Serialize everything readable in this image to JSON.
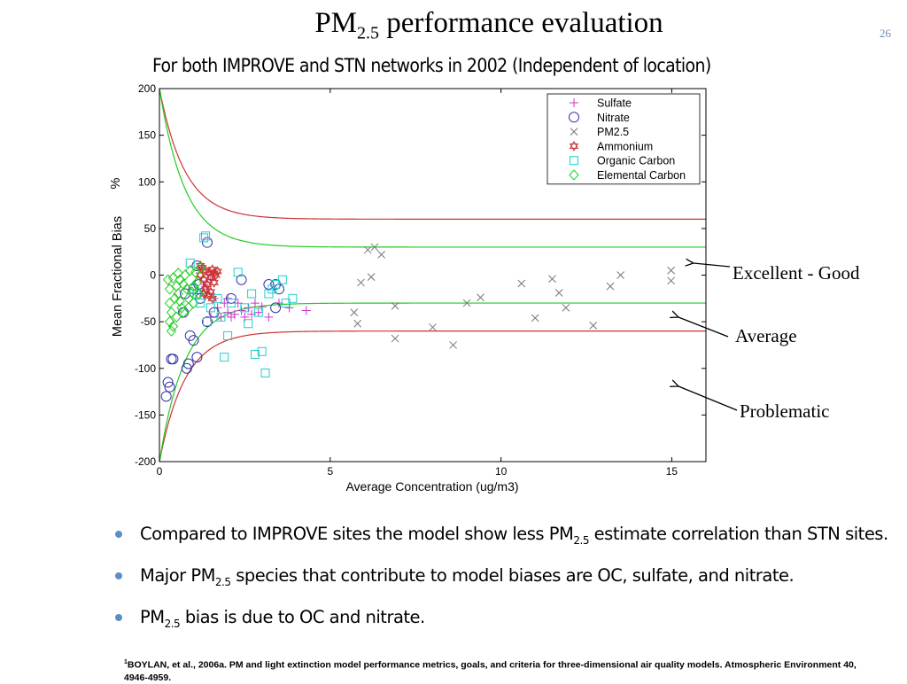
{
  "slide": {
    "title_main": "PM",
    "title_sub": "2.5",
    "title_rest": " performance evaluation",
    "page_number": "26",
    "subtitle": "For both IMPROVE and STN networks in 2002 (Independent of location)"
  },
  "annotations": [
    {
      "id": "excellent",
      "label": "Excellent - Good"
    },
    {
      "id": "average",
      "label": "Average"
    },
    {
      "id": "problematic",
      "label": "Problematic"
    }
  ],
  "bullets": [
    {
      "pre": "Compared to IMPROVE sites the model show less PM",
      "sub": "2.5",
      "post": " estimate correlation than STN sites."
    },
    {
      "pre": "Major PM",
      "sub": "2.5",
      "post": " species that contribute to model biases are OC, sulfate, and nitrate."
    },
    {
      "pre": "PM",
      "sub": "2.5",
      "post": " bias is due to OC and nitrate."
    }
  ],
  "footnote": {
    "marker": "1",
    "text": "BOYLAN, et al., 2006a. PM and light extinction model performance metrics, goals, and criteria for three-dimensional air quality models. Atmospheric Environment 40, 4946-4959."
  },
  "colors": {
    "goal_curve": "#22cc22",
    "criteria_curve": "#cc3333",
    "sulfate": "#cc33cc",
    "nitrate": "#3333aa",
    "pm25": "#777777",
    "ammonium": "#cc3333",
    "organic_carbon": "#22cccc",
    "elemental_carbon": "#22cc22",
    "arrow": "#000000"
  },
  "chart_data": {
    "type": "scatter",
    "xlabel": "Average Concentration (ug/m3)",
    "ylabel": "Mean Fractional Bias",
    "yunit": "%",
    "xlim": [
      0,
      16
    ],
    "ylim": [
      -200,
      200
    ],
    "xticks": [
      0,
      5,
      10,
      15
    ],
    "yticks": [
      200,
      150,
      100,
      50,
      0,
      -50,
      -100,
      -150,
      -200
    ],
    "grid": false,
    "legend_position": "top-right",
    "reference_curves": [
      {
        "kind": "criteria",
        "asymptote": 60,
        "start": 200,
        "decay": 0.75
      },
      {
        "kind": "goal",
        "asymptote": 30,
        "start": 200,
        "decay": 0.75
      }
    ],
    "series": [
      {
        "name": "Sulfate",
        "marker": "plus",
        "points": [
          [
            1.2,
            -20
          ],
          [
            1.3,
            -10
          ],
          [
            1.4,
            -15
          ],
          [
            1.5,
            -5
          ],
          [
            1.6,
            -25
          ],
          [
            1.7,
            -35
          ],
          [
            1.8,
            -45
          ],
          [
            1.9,
            -30
          ],
          [
            2.0,
            -40
          ],
          [
            2.1,
            -45
          ],
          [
            2.2,
            -42
          ],
          [
            2.3,
            -30
          ],
          [
            2.4,
            -38
          ],
          [
            2.5,
            -45
          ],
          [
            2.6,
            -35
          ],
          [
            2.7,
            -42
          ],
          [
            2.8,
            -30
          ],
          [
            2.9,
            -40
          ],
          [
            3.0,
            -34
          ],
          [
            3.2,
            -45
          ],
          [
            3.5,
            -30
          ],
          [
            3.8,
            -35
          ],
          [
            4.3,
            -38
          ],
          [
            1.5,
            -45
          ],
          [
            2.0,
            -25
          ]
        ]
      },
      {
        "name": "Nitrate",
        "marker": "circle",
        "points": [
          [
            0.2,
            -130
          ],
          [
            0.3,
            -120
          ],
          [
            0.25,
            -115
          ],
          [
            0.35,
            -90
          ],
          [
            0.4,
            -90
          ],
          [
            0.7,
            -40
          ],
          [
            0.75,
            -20
          ],
          [
            0.8,
            -100
          ],
          [
            0.85,
            -95
          ],
          [
            0.9,
            -65
          ],
          [
            1.0,
            -70
          ],
          [
            1.0,
            -15
          ],
          [
            1.1,
            10
          ],
          [
            1.15,
            -10
          ],
          [
            1.2,
            -25
          ],
          [
            1.4,
            35
          ],
          [
            1.4,
            -50
          ],
          [
            1.6,
            -40
          ],
          [
            2.1,
            -25
          ],
          [
            2.4,
            -5
          ],
          [
            3.2,
            -10
          ],
          [
            3.4,
            -35
          ],
          [
            3.5,
            -15
          ],
          [
            3.4,
            -10
          ],
          [
            1.1,
            -88
          ]
        ]
      },
      {
        "name": "PM2.5",
        "marker": "x",
        "points": [
          [
            5.7,
            -40
          ],
          [
            5.8,
            -52
          ],
          [
            5.9,
            -8
          ],
          [
            6.1,
            27
          ],
          [
            6.2,
            -2
          ],
          [
            6.3,
            30
          ],
          [
            6.5,
            22
          ],
          [
            6.9,
            -33
          ],
          [
            6.9,
            -68
          ],
          [
            8.0,
            -56
          ],
          [
            8.6,
            -75
          ],
          [
            9.0,
            -30
          ],
          [
            9.4,
            -24
          ],
          [
            10.6,
            -9
          ],
          [
            11.0,
            -46
          ],
          [
            11.5,
            -4
          ],
          [
            11.7,
            -19
          ],
          [
            11.9,
            -35
          ],
          [
            12.7,
            -54
          ],
          [
            13.2,
            -12
          ],
          [
            13.5,
            0
          ],
          [
            14.98,
            5
          ],
          [
            14.98,
            -6
          ]
        ]
      },
      {
        "name": "Ammonium",
        "marker": "star",
        "points": [
          [
            1.2,
            0
          ],
          [
            1.25,
            8
          ],
          [
            1.3,
            -5
          ],
          [
            1.35,
            5
          ],
          [
            1.4,
            -10
          ],
          [
            1.45,
            3
          ],
          [
            1.5,
            -2
          ],
          [
            1.55,
            6
          ],
          [
            1.6,
            -8
          ],
          [
            1.65,
            0
          ],
          [
            1.7,
            4
          ],
          [
            1.3,
            -20
          ],
          [
            1.35,
            -15
          ],
          [
            1.45,
            -22
          ],
          [
            1.5,
            -18
          ],
          [
            1.55,
            -25
          ],
          [
            1.2,
            10
          ],
          [
            1.6,
            2
          ]
        ]
      },
      {
        "name": "Organic Carbon",
        "marker": "square",
        "points": [
          [
            0.9,
            13
          ],
          [
            1.0,
            -15
          ],
          [
            1.1,
            -20
          ],
          [
            1.2,
            -30
          ],
          [
            1.3,
            40
          ],
          [
            1.35,
            42
          ],
          [
            1.5,
            -35
          ],
          [
            1.7,
            -25
          ],
          [
            1.9,
            -88
          ],
          [
            2.0,
            -65
          ],
          [
            2.1,
            -30
          ],
          [
            2.3,
            3
          ],
          [
            2.5,
            -35
          ],
          [
            2.6,
            -52
          ],
          [
            2.8,
            -85
          ],
          [
            2.9,
            -40
          ],
          [
            3.0,
            -82
          ],
          [
            3.1,
            -105
          ],
          [
            3.2,
            -20
          ],
          [
            3.4,
            -10
          ],
          [
            3.6,
            -5
          ],
          [
            3.7,
            -30
          ],
          [
            3.9,
            -25
          ],
          [
            1.4,
            -50
          ],
          [
            1.8,
            -45
          ],
          [
            2.7,
            -20
          ],
          [
            3.3,
            -15
          ]
        ]
      },
      {
        "name": "Elemental Carbon",
        "marker": "diamond",
        "points": [
          [
            0.25,
            -5
          ],
          [
            0.3,
            -15
          ],
          [
            0.3,
            -30
          ],
          [
            0.35,
            -40
          ],
          [
            0.4,
            -55
          ],
          [
            0.35,
            -60
          ],
          [
            0.45,
            -25
          ],
          [
            0.5,
            -12
          ],
          [
            0.55,
            -20
          ],
          [
            0.6,
            -5
          ],
          [
            0.65,
            -35
          ],
          [
            0.7,
            -10
          ],
          [
            0.75,
            0
          ],
          [
            0.8,
            -15
          ],
          [
            0.85,
            -25
          ],
          [
            0.9,
            5
          ],
          [
            0.95,
            -18
          ],
          [
            1.0,
            -30
          ],
          [
            1.05,
            3
          ],
          [
            1.1,
            -8
          ],
          [
            1.15,
            -20
          ],
          [
            1.2,
            8
          ],
          [
            0.5,
            -45
          ],
          [
            0.6,
            -28
          ],
          [
            0.7,
            -40
          ],
          [
            0.4,
            -3
          ],
          [
            0.55,
            2
          ],
          [
            0.85,
            -35
          ],
          [
            1.0,
            -12
          ],
          [
            0.3,
            -50
          ]
        ]
      }
    ]
  }
}
